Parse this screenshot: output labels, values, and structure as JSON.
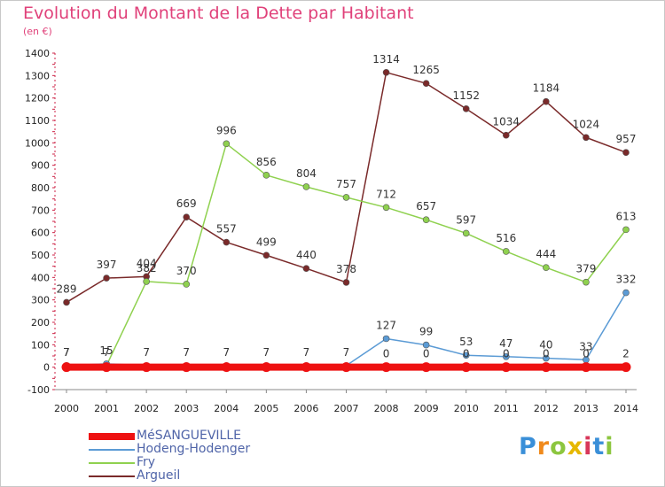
{
  "chart_data": {
    "type": "line",
    "title": "Evolution du Montant de la Dette par Habitant",
    "subtitle": "(en €)",
    "xlabel": "",
    "ylabel": "",
    "ylim": [
      -100,
      1400
    ],
    "yticks": [
      -100,
      0,
      100,
      200,
      300,
      400,
      500,
      600,
      700,
      800,
      900,
      1000,
      1100,
      1200,
      1300,
      1400
    ],
    "categories": [
      "2000",
      "2001",
      "2002",
      "2003",
      "2004",
      "2005",
      "2006",
      "2007",
      "2008",
      "2009",
      "2010",
      "2011",
      "2012",
      "2013",
      "2014"
    ],
    "grid": false,
    "legend": "bottom-left",
    "series": [
      {
        "name": "MéSANGUEVILLE",
        "color": "#ee1111",
        "thick": true,
        "values": [
          0,
          0,
          0,
          0,
          0,
          0,
          0,
          0,
          0,
          0,
          0,
          0,
          0,
          0,
          0
        ],
        "labels": []
      },
      {
        "name": "Hodeng-Hodenger",
        "color": "#5b9bd5",
        "thick": false,
        "values": [
          7,
          15,
          7,
          7,
          7,
          7,
          7,
          7,
          127,
          99,
          53,
          47,
          40,
          33,
          332
        ],
        "labels": [
          "7",
          "15",
          "7",
          "7",
          "7",
          "7",
          "7",
          "7",
          "127",
          "99",
          "53",
          "47",
          "40",
          "33",
          "332"
        ]
      },
      {
        "name": "Fry",
        "color": "#8fd14f",
        "thick": false,
        "values": [
          7,
          7,
          382,
          370,
          996,
          856,
          804,
          757,
          712,
          657,
          597,
          516,
          444,
          379,
          613
        ],
        "labels": [
          "7",
          "7",
          "382",
          "370",
          "996",
          "856",
          "804",
          "757",
          "712",
          "657",
          "597",
          "516",
          "444",
          "379",
          "613"
        ]
      },
      {
        "name": "Argueil",
        "color": "#7a2a2a",
        "thick": false,
        "values": [
          289,
          397,
          404,
          669,
          557,
          499,
          440,
          378,
          1314,
          1265,
          1152,
          1034,
          1184,
          1024,
          957
        ],
        "labels": [
          "289",
          "397",
          "404",
          "669",
          "557",
          "499",
          "440",
          "378",
          "1314",
          "1265",
          "1152",
          "1034",
          "1184",
          "1024",
          "957"
        ]
      }
    ],
    "extra_labels": [
      "0",
      "0",
      "0",
      "0",
      "0",
      "0",
      "2"
    ]
  },
  "legend": {
    "items": [
      {
        "label": "MéSANGUEVILLE",
        "color": "#ee1111"
      },
      {
        "label": "Hodeng-Hodenger",
        "color": "#5b9bd5"
      },
      {
        "label": "Fry",
        "color": "#8fd14f"
      },
      {
        "label": "Argueil",
        "color": "#7a2a2a"
      }
    ]
  },
  "logo": {
    "text": "Proxiti",
    "letters": [
      "P",
      "r",
      "o",
      "x",
      "i",
      "t",
      "i"
    ],
    "colors": [
      "#3a8fd8",
      "#f08a1c",
      "#8cc63f",
      "#e6b800",
      "#d8375a",
      "#3a8fd8",
      "#8cc63f"
    ]
  }
}
